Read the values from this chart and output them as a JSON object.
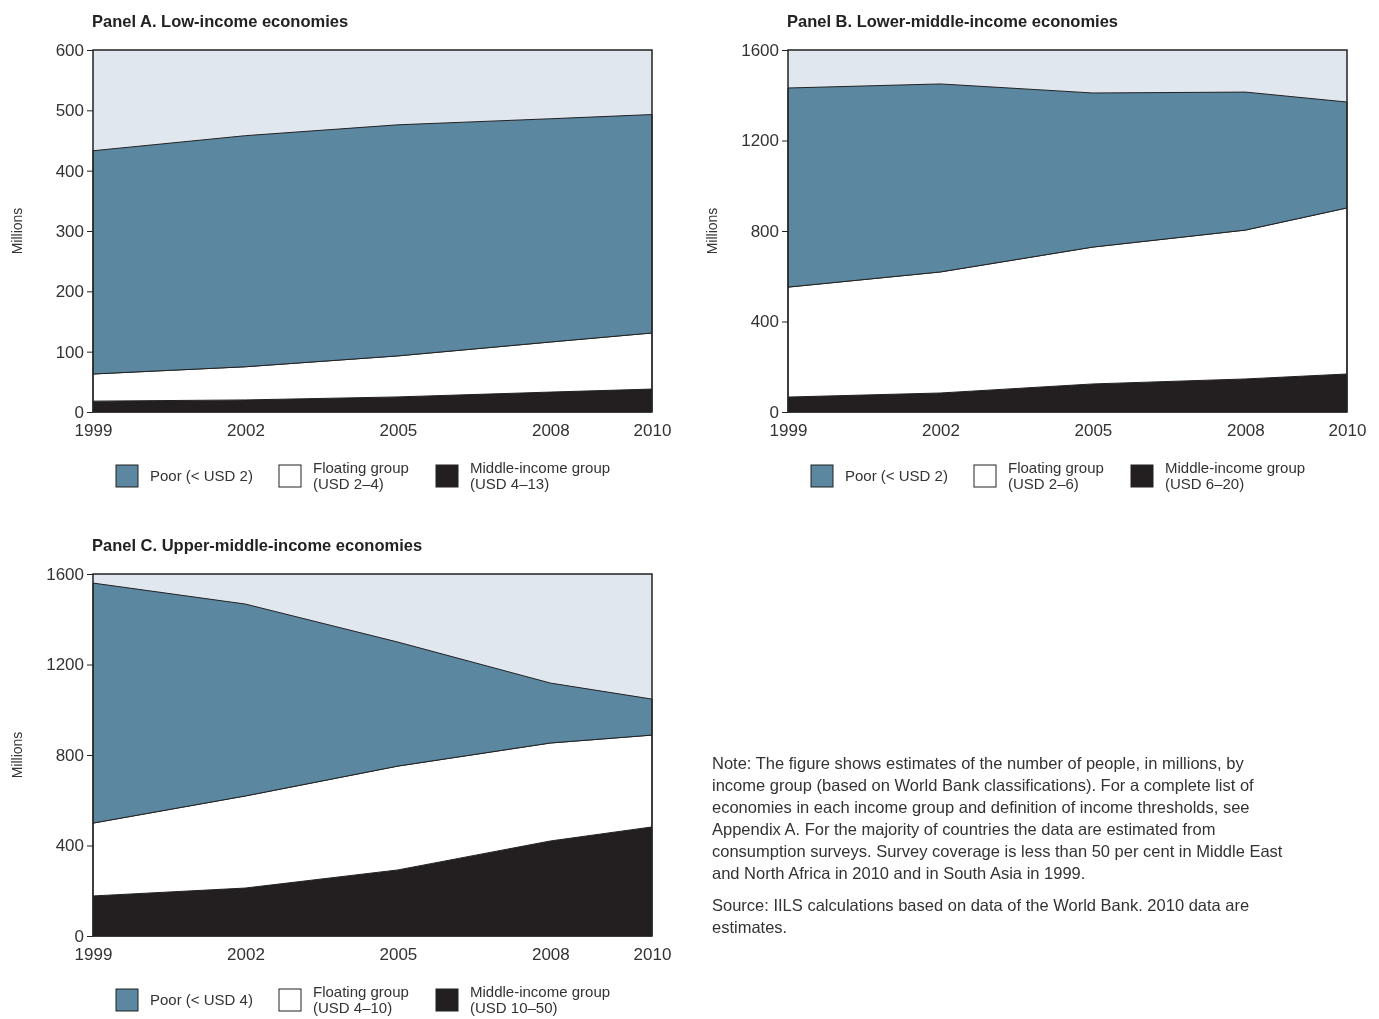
{
  "chart_data": [
    {
      "type": "area",
      "title": "Panel A. Low-income economies",
      "ylabel": "Millions",
      "stacked": true,
      "x": [
        1999,
        2002,
        2005,
        2008,
        2010
      ],
      "xlim": [
        1999,
        2010
      ],
      "xticks": [
        1999,
        2002,
        2005,
        2008,
        2010
      ],
      "ylim": [
        0,
        600
      ],
      "yticks": [
        0,
        100,
        200,
        300,
        400,
        500,
        600
      ],
      "legend": "bottom",
      "series": [
        {
          "name": "Middle-income group\n(USD 4–13)",
          "color": "#231f20",
          "values": [
            18,
            20,
            25,
            33,
            38
          ]
        },
        {
          "name": "Floating group\n(USD 2–4)",
          "color": "#ffffff",
          "values": [
            45,
            55,
            68,
            83,
            93
          ]
        },
        {
          "name": "Poor (< USD 2)",
          "color": "#5b87a0",
          "values": [
            370,
            383,
            383,
            370,
            362
          ]
        }
      ]
    },
    {
      "type": "area",
      "title": "Panel B. Lower-middle-income economies",
      "ylabel": "Millions",
      "stacked": true,
      "x": [
        1999,
        2002,
        2005,
        2008,
        2010
      ],
      "xlim": [
        1999,
        2010
      ],
      "xticks": [
        1999,
        2002,
        2005,
        2008,
        2010
      ],
      "ylim": [
        0,
        1600
      ],
      "yticks": [
        0,
        400,
        800,
        1200,
        1600
      ],
      "legend": "bottom",
      "series": [
        {
          "name": "Middle-income group\n(USD 6–20)",
          "color": "#231f20",
          "values": [
            66,
            84,
            124,
            146,
            168
          ]
        },
        {
          "name": "Floating group\n(USD 2–6)",
          "color": "#ffffff",
          "values": [
            486,
            535,
            605,
            658,
            734
          ]
        },
        {
          "name": "Poor (< USD 2)",
          "color": "#5b87a0",
          "values": [
            880,
            831,
            681,
            610,
            468
          ]
        }
      ]
    },
    {
      "type": "area",
      "title": "Panel C. Upper-middle-income economies",
      "ylabel": "Millions",
      "stacked": true,
      "x": [
        1999,
        2002,
        2005,
        2008,
        2010
      ],
      "xlim": [
        1999,
        2010
      ],
      "xticks": [
        1999,
        2002,
        2005,
        2008,
        2010
      ],
      "ylim": [
        0,
        1600
      ],
      "yticks": [
        0,
        400,
        800,
        1200,
        1600
      ],
      "legend": "bottom",
      "series": [
        {
          "name": "Middle-income group\n(USD 10–50)",
          "color": "#231f20",
          "values": [
            177,
            212,
            292,
            420,
            482
          ]
        },
        {
          "name": "Floating group\n(USD 4–10)",
          "color": "#ffffff",
          "values": [
            322,
            407,
            459,
            433,
            406
          ]
        },
        {
          "name": "Poor (< USD 4)",
          "color": "#5b87a0",
          "values": [
            1061,
            848,
            548,
            265,
            159
          ]
        }
      ]
    },
    {
      "type": "other",
      "annotations": [
        "Note: The figure shows estimates of the number of people, in millions, by income group (based on World Bank classifications). For a complete list of economies in each income group and definition of income thresholds, see Appendix A. For the majority of countries the data are estimated from consumption surveys. Survey coverage is less than 50 per cent in Middle East and North Africa in 2010 and in South Asia in 1999.",
        "Source: IILS calculations based on data of the World Bank. 2010 data are estimates."
      ]
    }
  ]
}
